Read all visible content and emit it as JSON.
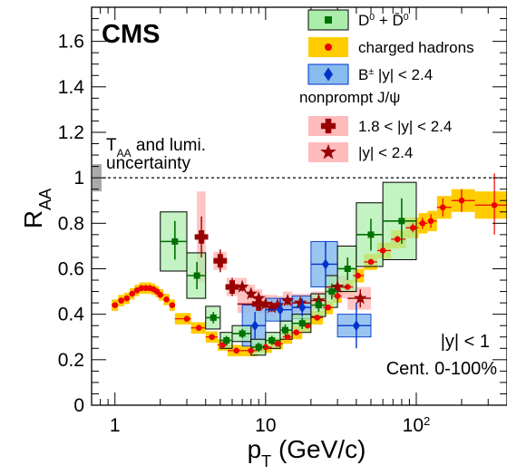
{
  "chart_data": {
    "type": "scatter",
    "title": "CMS",
    "xlabel": "p_T (GeV/c)",
    "ylabel": "R_AA",
    "x_scale": "log",
    "xlim": [
      0.7,
      400
    ],
    "ylim": [
      0,
      1.75
    ],
    "x_ticks": [
      {
        "value": 1,
        "label": "1"
      },
      {
        "value": 10,
        "label": "10"
      },
      {
        "value": 100,
        "label": "10",
        "sup": "2"
      }
    ],
    "y_ticks": [
      {
        "value": 0,
        "label": "0"
      },
      {
        "value": 0.2,
        "label": "0.2"
      },
      {
        "value": 0.4,
        "label": "0.4"
      },
      {
        "value": 0.6,
        "label": "0.6"
      },
      {
        "value": 0.8,
        "label": "0.8"
      },
      {
        "value": 1,
        "label": "1"
      },
      {
        "value": 1.2,
        "label": "1.2"
      },
      {
        "value": 1.4,
        "label": "1.4"
      },
      {
        "value": 1.6,
        "label": "1.6"
      }
    ],
    "reference_line": 1.0,
    "uncertainty_text": [
      "T_AA and lumi.",
      "uncertainty"
    ],
    "uncertainty_band": [
      0.94,
      1.06
    ],
    "annotations": [
      "|y| < 1",
      "Cent. 0-100%"
    ],
    "legend_placement": "top-right",
    "legend_header": "nonprompt J/ψ",
    "colors": {
      "d0": "#007000",
      "d0_box": "#aaeeaa",
      "ch": "#ee0000",
      "ch_band": "#ffcc00",
      "b": "#0033cc",
      "b_box": "#88bbee",
      "jpsi": "#990000",
      "jpsi_box": "#ffbbbb"
    },
    "series": [
      {
        "name": "D⁰ + D̄⁰",
        "marker": "square",
        "points": [
          {
            "x": 2.5,
            "y": 0.72,
            "xlo": 2.0,
            "xhi": 3.0,
            "elo": 0.08,
            "ehi": 0.09,
            "slo": 0.13,
            "shi": 0.13
          },
          {
            "x": 3.5,
            "y": 0.57,
            "xlo": 3.0,
            "xhi": 4.0,
            "elo": 0.06,
            "ehi": 0.06,
            "slo": 0.1,
            "shi": 0.1
          },
          {
            "x": 4.5,
            "y": 0.385,
            "xlo": 4.0,
            "xhi": 5.0,
            "elo": 0.025,
            "ehi": 0.025,
            "slo": 0.05,
            "shi": 0.05
          },
          {
            "x": 5.5,
            "y": 0.285,
            "xlo": 5.0,
            "xhi": 6.0,
            "elo": 0.02,
            "ehi": 0.02,
            "slo": 0.035,
            "shi": 0.035
          },
          {
            "x": 7.0,
            "y": 0.315,
            "xlo": 6.0,
            "xhi": 8.0,
            "elo": 0.02,
            "ehi": 0.02,
            "slo": 0.035,
            "shi": 0.035
          },
          {
            "x": 9.0,
            "y": 0.255,
            "xlo": 8.0,
            "xhi": 10.0,
            "elo": 0.02,
            "ehi": 0.02,
            "slo": 0.035,
            "shi": 0.035
          },
          {
            "x": 11.0,
            "y": 0.285,
            "xlo": 10.0,
            "xhi": 12.5,
            "elo": 0.02,
            "ehi": 0.02,
            "slo": 0.035,
            "shi": 0.035
          },
          {
            "x": 13.5,
            "y": 0.33,
            "xlo": 12.5,
            "xhi": 15.0,
            "elo": 0.025,
            "ehi": 0.025,
            "slo": 0.04,
            "shi": 0.04
          },
          {
            "x": 17.5,
            "y": 0.36,
            "xlo": 15.0,
            "xhi": 20.0,
            "elo": 0.025,
            "ehi": 0.025,
            "slo": 0.04,
            "shi": 0.04
          },
          {
            "x": 22.5,
            "y": 0.44,
            "xlo": 20.0,
            "xhi": 25.0,
            "elo": 0.03,
            "ehi": 0.03,
            "slo": 0.05,
            "shi": 0.05
          },
          {
            "x": 27.5,
            "y": 0.5,
            "xlo": 25.0,
            "xhi": 30.0,
            "elo": 0.035,
            "ehi": 0.035,
            "slo": 0.07,
            "shi": 0.07
          },
          {
            "x": 35.0,
            "y": 0.6,
            "xlo": 30.0,
            "xhi": 40.0,
            "elo": 0.05,
            "ehi": 0.05,
            "slo": 0.1,
            "shi": 0.1
          },
          {
            "x": 50.0,
            "y": 0.75,
            "xlo": 40.0,
            "xhi": 60.0,
            "elo": 0.07,
            "ehi": 0.07,
            "slo": 0.14,
            "shi": 0.14
          },
          {
            "x": 80.0,
            "y": 0.81,
            "xlo": 60.0,
            "xhi": 100.0,
            "elo": 0.1,
            "ehi": 0.1,
            "slo": 0.17,
            "shi": 0.17
          }
        ]
      },
      {
        "name": "charged hadrons",
        "marker": "circle",
        "points": [
          {
            "x": 1.0,
            "y": 0.44,
            "xlo": 0.95,
            "xhi": 1.05,
            "elo": 0.003,
            "ehi": 0.003,
            "slo": 0.025,
            "shi": 0.025
          },
          {
            "x": 1.1,
            "y": 0.46,
            "xlo": 1.05,
            "xhi": 1.15,
            "elo": 0.003,
            "ehi": 0.003,
            "slo": 0.025,
            "shi": 0.025
          },
          {
            "x": 1.2,
            "y": 0.47,
            "xlo": 1.15,
            "xhi": 1.25,
            "elo": 0.003,
            "ehi": 0.003,
            "slo": 0.025,
            "shi": 0.025
          },
          {
            "x": 1.3,
            "y": 0.49,
            "xlo": 1.25,
            "xhi": 1.35,
            "elo": 0.003,
            "ehi": 0.003,
            "slo": 0.025,
            "shi": 0.025
          },
          {
            "x": 1.4,
            "y": 0.505,
            "xlo": 1.35,
            "xhi": 1.45,
            "elo": 0.003,
            "ehi": 0.003,
            "slo": 0.025,
            "shi": 0.025
          },
          {
            "x": 1.5,
            "y": 0.515,
            "xlo": 1.45,
            "xhi": 1.55,
            "elo": 0.003,
            "ehi": 0.003,
            "slo": 0.025,
            "shi": 0.025
          },
          {
            "x": 1.6,
            "y": 0.515,
            "xlo": 1.55,
            "xhi": 1.65,
            "elo": 0.003,
            "ehi": 0.003,
            "slo": 0.025,
            "shi": 0.025
          },
          {
            "x": 1.7,
            "y": 0.515,
            "xlo": 1.65,
            "xhi": 1.75,
            "elo": 0.003,
            "ehi": 0.003,
            "slo": 0.025,
            "shi": 0.025
          },
          {
            "x": 1.8,
            "y": 0.51,
            "xlo": 1.75,
            "xhi": 1.85,
            "elo": 0.003,
            "ehi": 0.003,
            "slo": 0.025,
            "shi": 0.025
          },
          {
            "x": 1.9,
            "y": 0.5,
            "xlo": 1.85,
            "xhi": 1.95,
            "elo": 0.003,
            "ehi": 0.003,
            "slo": 0.025,
            "shi": 0.025
          },
          {
            "x": 2.0,
            "y": 0.485,
            "xlo": 1.95,
            "xhi": 2.1,
            "elo": 0.003,
            "ehi": 0.003,
            "slo": 0.025,
            "shi": 0.025
          },
          {
            "x": 2.2,
            "y": 0.465,
            "xlo": 2.1,
            "xhi": 2.3,
            "elo": 0.003,
            "ehi": 0.003,
            "slo": 0.025,
            "shi": 0.025
          },
          {
            "x": 2.4,
            "y": 0.44,
            "xlo": 2.3,
            "xhi": 2.5,
            "elo": 0.003,
            "ehi": 0.003,
            "slo": 0.025,
            "shi": 0.025
          },
          {
            "x": 3.0,
            "y": 0.38,
            "xlo": 2.5,
            "xhi": 3.2,
            "elo": 0.003,
            "ehi": 0.003,
            "slo": 0.025,
            "shi": 0.025
          },
          {
            "x": 3.6,
            "y": 0.34,
            "xlo": 3.2,
            "xhi": 4.0,
            "elo": 0.003,
            "ehi": 0.003,
            "slo": 0.025,
            "shi": 0.025
          },
          {
            "x": 4.4,
            "y": 0.3,
            "xlo": 4.0,
            "xhi": 4.8,
            "elo": 0.003,
            "ehi": 0.003,
            "slo": 0.025,
            "shi": 0.025
          },
          {
            "x": 5.2,
            "y": 0.265,
            "xlo": 4.8,
            "xhi": 5.6,
            "elo": 0.003,
            "ehi": 0.003,
            "slo": 0.025,
            "shi": 0.025
          },
          {
            "x": 6.4,
            "y": 0.24,
            "xlo": 5.6,
            "xhi": 7.2,
            "elo": 0.003,
            "ehi": 0.003,
            "slo": 0.025,
            "shi": 0.025
          },
          {
            "x": 8.0,
            "y": 0.24,
            "xlo": 7.2,
            "xhi": 8.8,
            "elo": 0.003,
            "ehi": 0.003,
            "slo": 0.025,
            "shi": 0.025
          },
          {
            "x": 10.0,
            "y": 0.255,
            "xlo": 8.8,
            "xhi": 11.0,
            "elo": 0.003,
            "ehi": 0.003,
            "slo": 0.025,
            "shi": 0.025
          },
          {
            "x": 12.0,
            "y": 0.27,
            "xlo": 11.0,
            "xhi": 13.0,
            "elo": 0.003,
            "ehi": 0.003,
            "slo": 0.025,
            "shi": 0.025
          },
          {
            "x": 14.0,
            "y": 0.3,
            "xlo": 13.0,
            "xhi": 15.0,
            "elo": 0.005,
            "ehi": 0.005,
            "slo": 0.03,
            "shi": 0.03
          },
          {
            "x": 16.0,
            "y": 0.32,
            "xlo": 15.0,
            "xhi": 17.5,
            "elo": 0.005,
            "ehi": 0.005,
            "slo": 0.03,
            "shi": 0.03
          },
          {
            "x": 19.0,
            "y": 0.35,
            "xlo": 17.5,
            "xhi": 20.0,
            "elo": 0.005,
            "ehi": 0.005,
            "slo": 0.03,
            "shi": 0.03
          },
          {
            "x": 22.0,
            "y": 0.385,
            "xlo": 20.0,
            "xhi": 24.0,
            "elo": 0.005,
            "ehi": 0.005,
            "slo": 0.03,
            "shi": 0.03
          },
          {
            "x": 26.0,
            "y": 0.43,
            "xlo": 24.0,
            "xhi": 28.0,
            "elo": 0.005,
            "ehi": 0.005,
            "slo": 0.03,
            "shi": 0.03
          },
          {
            "x": 30.0,
            "y": 0.48,
            "xlo": 28.0,
            "xhi": 32.0,
            "elo": 0.005,
            "ehi": 0.005,
            "slo": 0.03,
            "shi": 0.03
          },
          {
            "x": 35.0,
            "y": 0.52,
            "xlo": 32.0,
            "xhi": 38.0,
            "elo": 0.008,
            "ehi": 0.008,
            "slo": 0.03,
            "shi": 0.03
          },
          {
            "x": 41.0,
            "y": 0.57,
            "xlo": 38.0,
            "xhi": 45.0,
            "elo": 0.008,
            "ehi": 0.008,
            "slo": 0.03,
            "shi": 0.03
          },
          {
            "x": 50.0,
            "y": 0.63,
            "xlo": 45.0,
            "xhi": 55.0,
            "elo": 0.01,
            "ehi": 0.01,
            "slo": 0.035,
            "shi": 0.035
          },
          {
            "x": 60.0,
            "y": 0.68,
            "xlo": 55.0,
            "xhi": 68.0,
            "elo": 0.012,
            "ehi": 0.012,
            "slo": 0.035,
            "shi": 0.035
          },
          {
            "x": 75.0,
            "y": 0.73,
            "xlo": 68.0,
            "xhi": 85.0,
            "elo": 0.015,
            "ehi": 0.015,
            "slo": 0.04,
            "shi": 0.04
          },
          {
            "x": 95.0,
            "y": 0.78,
            "xlo": 85.0,
            "xhi": 103.6,
            "elo": 0.02,
            "ehi": 0.02,
            "slo": 0.045,
            "shi": 0.045
          },
          {
            "x": 110.0,
            "y": 0.8,
            "xlo": 103.6,
            "xhi": 118.8,
            "elo": 0.025,
            "ehi": 0.025,
            "slo": 0.045,
            "shi": 0.045
          },
          {
            "x": 125.0,
            "y": 0.81,
            "xlo": 118.8,
            "xhi": 137.2,
            "elo": 0.03,
            "ehi": 0.03,
            "slo": 0.045,
            "shi": 0.045
          },
          {
            "x": 150.0,
            "y": 0.87,
            "xlo": 137.2,
            "xhi": 171.2,
            "elo": 0.04,
            "ehi": 0.04,
            "slo": 0.05,
            "shi": 0.05
          },
          {
            "x": 200.0,
            "y": 0.9,
            "xlo": 171.2,
            "xhi": 245.0,
            "elo": 0.05,
            "ehi": 0.05,
            "slo": 0.05,
            "shi": 0.05
          },
          {
            "x": 330.0,
            "y": 0.88,
            "xlo": 245.0,
            "xhi": 400.0,
            "elo": 0.13,
            "ehi": 0.14,
            "slo": 0.06,
            "shi": 0.06
          }
        ]
      },
      {
        "name": "B± |y| < 2.4",
        "marker": "diamond",
        "points": [
          {
            "x": 8.5,
            "y": 0.35,
            "xlo": 7.0,
            "xhi": 10.0,
            "elo": 0.06,
            "ehi": 0.06,
            "slo": 0.09,
            "shi": 0.09
          },
          {
            "x": 12.5,
            "y": 0.42,
            "xlo": 10.0,
            "xhi": 15.0,
            "elo": 0.05,
            "ehi": 0.05,
            "slo": 0.05,
            "shi": 0.05
          },
          {
            "x": 17.5,
            "y": 0.43,
            "xlo": 15.0,
            "xhi": 20.0,
            "elo": 0.04,
            "ehi": 0.04,
            "slo": 0.05,
            "shi": 0.05
          },
          {
            "x": 25.0,
            "y": 0.62,
            "xlo": 20.0,
            "xhi": 30.0,
            "elo": 0.1,
            "ehi": 0.1,
            "slo": 0.1,
            "shi": 0.1
          },
          {
            "x": 40.0,
            "y": 0.35,
            "xlo": 30.0,
            "xhi": 50.0,
            "elo": 0.1,
            "ehi": 0.1,
            "slo": 0.05,
            "shi": 0.05
          }
        ]
      },
      {
        "name": "1.8 < |y| < 2.4",
        "marker": "cross",
        "points": [
          {
            "x": 3.75,
            "y": 0.74,
            "xlo": 3.5,
            "xhi": 4.0,
            "elo": 0.09,
            "ehi": 0.09,
            "slo": 0.2,
            "shi": 0.2
          },
          {
            "x": 5.0,
            "y": 0.635,
            "xlo": 4.5,
            "xhi": 5.5,
            "elo": 0.05,
            "ehi": 0.05,
            "slo": 0.04,
            "shi": 0.04
          },
          {
            "x": 6.0,
            "y": 0.52,
            "xlo": 5.5,
            "xhi": 6.5,
            "elo": 0.04,
            "ehi": 0.04,
            "slo": 0.04,
            "shi": 0.04
          },
          {
            "x": 9.0,
            "y": 0.445,
            "xlo": 6.5,
            "xhi": 12.0,
            "elo": 0.03,
            "ehi": 0.03,
            "slo": 0.04,
            "shi": 0.04
          }
        ]
      },
      {
        "name": "|y| < 2.4",
        "marker": "star",
        "points": [
          {
            "x": 7.0,
            "y": 0.52,
            "xlo": 6.5,
            "xhi": 7.5,
            "elo": 0.02,
            "ehi": 0.02,
            "slo": 0.04,
            "shi": 0.04
          },
          {
            "x": 8.0,
            "y": 0.49,
            "xlo": 7.5,
            "xhi": 8.5,
            "elo": 0.02,
            "ehi": 0.02,
            "slo": 0.04,
            "shi": 0.04
          },
          {
            "x": 9.0,
            "y": 0.47,
            "xlo": 8.5,
            "xhi": 9.5,
            "elo": 0.02,
            "ehi": 0.02,
            "slo": 0.04,
            "shi": 0.04
          },
          {
            "x": 10.0,
            "y": 0.445,
            "xlo": 9.5,
            "xhi": 10.5,
            "elo": 0.02,
            "ehi": 0.02,
            "slo": 0.04,
            "shi": 0.04
          },
          {
            "x": 11.0,
            "y": 0.43,
            "xlo": 10.5,
            "xhi": 11.5,
            "elo": 0.02,
            "ehi": 0.02,
            "slo": 0.04,
            "shi": 0.04
          },
          {
            "x": 12.0,
            "y": 0.44,
            "xlo": 11.5,
            "xhi": 13.0,
            "elo": 0.02,
            "ehi": 0.02,
            "slo": 0.04,
            "shi": 0.04
          },
          {
            "x": 14.0,
            "y": 0.46,
            "xlo": 13.0,
            "xhi": 15.0,
            "elo": 0.02,
            "ehi": 0.02,
            "slo": 0.04,
            "shi": 0.04
          },
          {
            "x": 17.0,
            "y": 0.45,
            "xlo": 15.0,
            "xhi": 20.0,
            "elo": 0.02,
            "ehi": 0.02,
            "slo": 0.04,
            "shi": 0.04
          },
          {
            "x": 22.5,
            "y": 0.46,
            "xlo": 20.0,
            "xhi": 25.0,
            "elo": 0.025,
            "ehi": 0.025,
            "slo": 0.04,
            "shi": 0.04
          },
          {
            "x": 30.0,
            "y": 0.52,
            "xlo": 25.0,
            "xhi": 35.0,
            "elo": 0.03,
            "ehi": 0.03,
            "slo": 0.05,
            "shi": 0.05
          },
          {
            "x": 42.5,
            "y": 0.47,
            "xlo": 35.0,
            "xhi": 50.0,
            "elo": 0.04,
            "ehi": 0.04,
            "slo": 0.05,
            "shi": 0.05
          }
        ]
      }
    ]
  }
}
